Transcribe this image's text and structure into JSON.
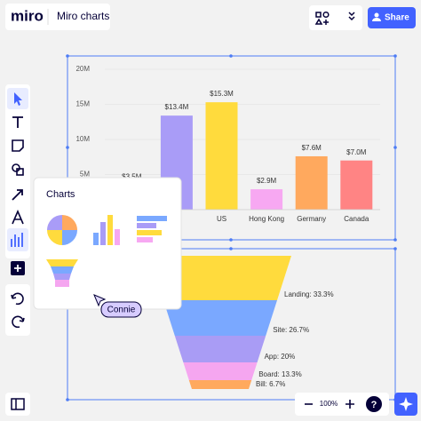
{
  "header": {
    "logo": "miro",
    "board_title": "Miro charts",
    "share": "Share"
  },
  "bar_chart": {
    "type": "bar",
    "categories": [
      null,
      null,
      "US",
      "Hong Kong",
      "Germany",
      "Canada"
    ],
    "values": [
      3500000,
      13400000,
      15300000,
      2900000,
      7600000,
      7000000
    ],
    "value_labels": [
      "$3.5M",
      "$13.4M",
      "$15.3M",
      "$2.9M",
      "$7.6M",
      "$7.0M"
    ],
    "colors": [
      "#7aa8ff",
      "#a99cf7",
      "#ffdb3d",
      "#f7a8f2",
      "#ffa95e",
      "#ff8484"
    ],
    "ylim": [
      0,
      20000000
    ],
    "yticks": [
      {
        "value": 5000000,
        "label": "5M"
      },
      {
        "value": 10000000,
        "label": "10M"
      },
      {
        "value": 15000000,
        "label": "15M"
      },
      {
        "value": 20000000,
        "label": "20M"
      }
    ],
    "grid": true
  },
  "funnel_chart": {
    "type": "funnel",
    "categories": [
      "Landing",
      "Site",
      "App",
      "Board",
      "Bill"
    ],
    "values": [
      33.3,
      26.7,
      20,
      13.3,
      6.7
    ],
    "value_labels": [
      "Landing: 33.3%",
      "Site: 26.7%",
      "App: 20%",
      "Board: 13.3%",
      "Bill: 6.7%"
    ],
    "colors": [
      "#ffdb3d",
      "#7aa8ff",
      "#a99cf5",
      "#f5a6f0",
      "#ffa95e"
    ]
  },
  "charts_panel": {
    "title": "Charts"
  },
  "collaborator": "Connie",
  "zoom": {
    "level": "100%",
    "help": "?"
  }
}
